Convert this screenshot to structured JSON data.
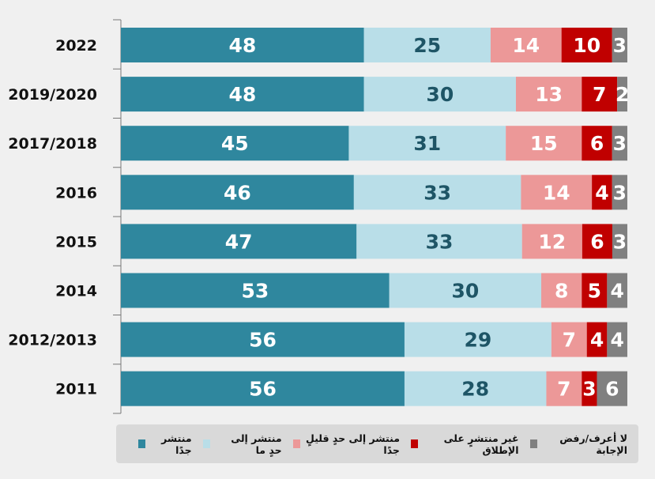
{
  "chart_data": {
    "type": "bar",
    "orientation": "horizontal-stacked-100",
    "categories": [
      "2022",
      "2019/2020",
      "2017/2018",
      "2016",
      "2015",
      "2014",
      "2012/2013",
      "2011"
    ],
    "series": [
      {
        "name": "منتشر جدًا",
        "color": "#2f879e",
        "text_color": "#ffffff",
        "values": [
          48,
          48,
          45,
          46,
          47,
          53,
          56,
          56
        ]
      },
      {
        "name": "منتشر إلى حدٍ ما",
        "color": "#b9dee8",
        "text_color": "#1e5566",
        "values": [
          25,
          30,
          31,
          33,
          33,
          30,
          29,
          28
        ]
      },
      {
        "name": "منتشر إلى حدٍ قليلٍ جدًا",
        "color": "#ec9898",
        "text_color": "#ffffff",
        "values": [
          14,
          13,
          15,
          14,
          12,
          8,
          7,
          7
        ]
      },
      {
        "name": "غير منتشرٍ على الإطلاق",
        "color": "#c00000",
        "text_color": "#ffffff",
        "values": [
          10,
          7,
          6,
          4,
          6,
          5,
          4,
          3
        ]
      },
      {
        "name": "لا أعرف/رفض الإجابة",
        "color": "#808080",
        "text_color": "#ffffff",
        "values": [
          3,
          2,
          3,
          3,
          3,
          4,
          4,
          6
        ]
      }
    ],
    "legend_position": "bottom",
    "grid": false
  }
}
